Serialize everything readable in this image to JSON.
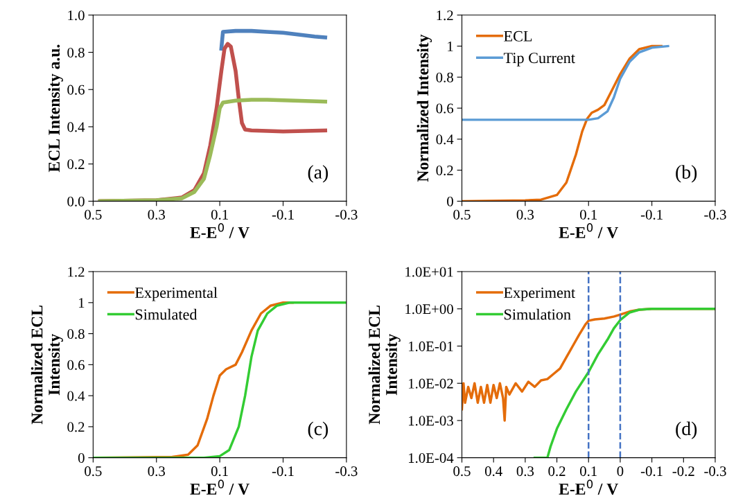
{
  "chart_data": [
    {
      "type": "line",
      "xlabel": "E-E$^{0}$ / V",
      "ylabel": "ECL Intensity a.u.",
      "annotations": [
        "(a)"
      ],
      "xlim": [
        0.5,
        -0.3
      ],
      "xticks": [
        0.5,
        0.3,
        0.1,
        {
          "value": -0.1,
          "label": "-0.1"
        },
        {
          "value": -0.3,
          "label": "-0.3"
        }
      ],
      "ylim": [
        0,
        1.0
      ],
      "yticks": [
        {
          "value": 0,
          "label": "0.0"
        },
        0.2,
        0.4,
        0.6,
        0.8,
        {
          "value": 1.0,
          "label": "1.0"
        }
      ],
      "grid": false,
      "legend": false,
      "series": [
        {
          "color": "#4f81bd",
          "x": [
            0.095,
            0.09,
            0.05,
            0.0,
            -0.05,
            -0.1,
            -0.15,
            -0.2,
            -0.233
          ],
          "values": [
            0.82,
            0.91,
            0.915,
            0.915,
            0.91,
            0.905,
            0.895,
            0.885,
            0.88
          ]
        },
        {
          "color": "#c0504d",
          "x": [
            0.478,
            0.3,
            0.22,
            0.18,
            0.15,
            0.13,
            0.11,
            0.095,
            0.085,
            0.075,
            0.065,
            0.05,
            0.04,
            0.03,
            0.02,
            0.0,
            -0.1,
            -0.233
          ],
          "values": [
            0.0,
            0.005,
            0.02,
            0.06,
            0.15,
            0.3,
            0.5,
            0.7,
            0.82,
            0.845,
            0.83,
            0.7,
            0.55,
            0.42,
            0.385,
            0.38,
            0.375,
            0.38
          ]
        },
        {
          "color": "#9bbb59",
          "x": [
            0.478,
            0.3,
            0.22,
            0.18,
            0.15,
            0.13,
            0.11,
            0.1,
            0.09,
            0.05,
            0.0,
            -0.05,
            -0.233
          ],
          "values": [
            0.0,
            0.005,
            0.015,
            0.05,
            0.12,
            0.25,
            0.4,
            0.5,
            0.53,
            0.54,
            0.545,
            0.545,
            0.535
          ]
        }
      ]
    },
    {
      "type": "line",
      "xlabel": "E-E$^{0}$ / V",
      "ylabel": "Normalized Intensity",
      "annotations": [
        "(b)"
      ],
      "xlim": [
        0.5,
        -0.3
      ],
      "xticks": [
        0.5,
        0.3,
        0.1,
        {
          "value": -0.1,
          "label": "-0.1"
        },
        {
          "value": -0.3,
          "label": "-0.3"
        }
      ],
      "ylim": [
        0,
        1.2
      ],
      "yticks": [
        0,
        0.2,
        0.4,
        0.6,
        0.8,
        1,
        1.2
      ],
      "grid": false,
      "legend": "top left",
      "series": [
        {
          "name": "ECL",
          "color": "#e46c0a",
          "x": [
            0.5,
            0.3,
            0.25,
            0.2,
            0.17,
            0.14,
            0.12,
            0.105,
            0.09,
            0.07,
            0.05,
            0.03,
            0.0,
            -0.03,
            -0.06,
            -0.1,
            -0.13
          ],
          "values": [
            0.0,
            0.005,
            0.01,
            0.04,
            0.12,
            0.3,
            0.45,
            0.53,
            0.57,
            0.59,
            0.62,
            0.7,
            0.82,
            0.92,
            0.98,
            1.0,
            1.0
          ]
        },
        {
          "name": "Tip Current",
          "color": "#5b9bd5",
          "x": [
            0.5,
            0.1,
            0.07,
            0.04,
            0.02,
            0.0,
            -0.03,
            -0.06,
            -0.1,
            -0.151
          ],
          "values": [
            0.525,
            0.525,
            0.535,
            0.58,
            0.67,
            0.79,
            0.9,
            0.96,
            0.99,
            1.0
          ]
        }
      ]
    },
    {
      "type": "line",
      "xlabel": "E-E$^{0}$ / V",
      "ylabel": "Normalized ECL\nIntensity",
      "annotations": [
        "(c)"
      ],
      "xlim": [
        0.5,
        -0.3
      ],
      "xticks": [
        0.5,
        0.3,
        0.1,
        {
          "value": -0.1,
          "label": "-0.1"
        },
        {
          "value": -0.3,
          "label": "-0.3"
        }
      ],
      "ylim": [
        0,
        1.2
      ],
      "yticks": [
        0,
        0.2,
        0.4,
        0.6,
        0.8,
        1,
        1.2
      ],
      "grid": false,
      "legend": "top left",
      "series": [
        {
          "name": "Experimental",
          "color": "#e46c0a",
          "x": [
            0.5,
            0.25,
            0.2,
            0.17,
            0.14,
            0.12,
            0.1,
            0.08,
            0.05,
            0.03,
            0.0,
            -0.03,
            -0.06,
            -0.1,
            -0.13
          ],
          "values": [
            0.0,
            0.005,
            0.02,
            0.08,
            0.25,
            0.4,
            0.53,
            0.57,
            0.6,
            0.68,
            0.82,
            0.93,
            0.98,
            1.0,
            1.0
          ]
        },
        {
          "name": "Simulated",
          "color": "#33cc33",
          "x": [
            0.5,
            0.15,
            0.1,
            0.07,
            0.04,
            0.02,
            0.0,
            -0.02,
            -0.05,
            -0.08,
            -0.12,
            -0.3
          ],
          "values": [
            0.0,
            0.0,
            0.01,
            0.05,
            0.2,
            0.4,
            0.65,
            0.82,
            0.93,
            0.98,
            1.0,
            1.0
          ]
        }
      ]
    },
    {
      "type": "line",
      "log": "y",
      "xlabel": "E-E$^{0}$ / V",
      "ylabel": "Normalized ECL\nIntensity",
      "annotations": [
        "(d)"
      ],
      "xlim": [
        0.5,
        -0.3
      ],
      "xticks": [
        0.5,
        0.4,
        0.3,
        0.2,
        0.1,
        0,
        {
          "value": -0.1,
          "label": "-0.1"
        },
        {
          "value": -0.2,
          "label": "-0.2"
        },
        {
          "value": -0.3,
          "label": "-0.3"
        }
      ],
      "ylim": [
        0.0001,
        10
      ],
      "yticks": [
        {
          "value": 0.0001,
          "label": "1.0E-04"
        },
        {
          "value": 0.001,
          "label": "1.0E-03"
        },
        {
          "value": 0.01,
          "label": "1.0E-02"
        },
        {
          "value": 0.1,
          "label": "1.0E-01"
        },
        {
          "value": 1,
          "label": "1.0E+00"
        },
        {
          "value": 10,
          "label": "1.0E+01"
        }
      ],
      "grid": false,
      "legend": "top left",
      "ref_lines": [
        {
          "axis": "x",
          "value": 0.1,
          "color": "#4472c4",
          "line_style": "dashed"
        },
        {
          "axis": "x",
          "value": 0,
          "color": "#4472c4",
          "line_style": "dashed"
        }
      ],
      "series": [
        {
          "name": "Experiment",
          "color": "#e46c0a",
          "x": [
            0.5,
            0.495,
            0.49,
            0.48,
            0.47,
            0.46,
            0.45,
            0.44,
            0.43,
            0.42,
            0.41,
            0.4,
            0.39,
            0.38,
            0.37,
            0.365,
            0.36,
            0.35,
            0.33,
            0.31,
            0.29,
            0.27,
            0.25,
            0.23,
            0.21,
            0.19,
            0.17,
            0.15,
            0.13,
            0.11,
            0.1,
            0.08,
            0.05,
            0.02,
            0.0,
            -0.03,
            -0.06,
            -0.1,
            -0.3
          ],
          "values": [
            0.002,
            0.01,
            0.003,
            0.008,
            0.004,
            0.01,
            0.003,
            0.008,
            0.003,
            0.009,
            0.003,
            0.009,
            0.004,
            0.01,
            0.004,
            0.001,
            0.008,
            0.005,
            0.01,
            0.006,
            0.011,
            0.008,
            0.012,
            0.013,
            0.018,
            0.025,
            0.05,
            0.1,
            0.2,
            0.38,
            0.48,
            0.52,
            0.55,
            0.62,
            0.7,
            0.85,
            0.95,
            1.0,
            1.0
          ]
        },
        {
          "name": "Simulation",
          "color": "#33cc33",
          "x": [
            0.27,
            0.23,
            0.22,
            0.2,
            0.17,
            0.14,
            0.1,
            0.07,
            0.04,
            0.02,
            0.0,
            -0.03,
            -0.06,
            -0.1,
            -0.3
          ],
          "values": [
            0.0001,
            0.0001,
            0.0002,
            0.0006,
            0.002,
            0.006,
            0.02,
            0.06,
            0.15,
            0.3,
            0.5,
            0.8,
            0.95,
            1.0,
            1.0
          ]
        }
      ]
    }
  ]
}
